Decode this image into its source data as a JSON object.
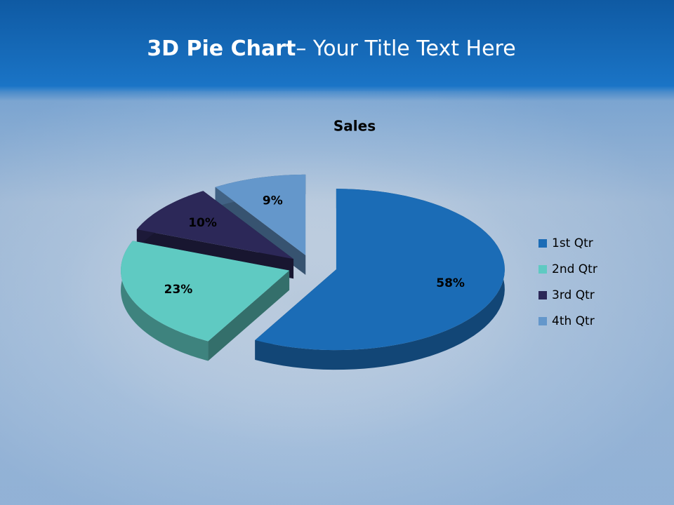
{
  "slide": {
    "title_bold": "3D Pie Chart",
    "title_rest": "– Your Title Text Here"
  },
  "chart_data": {
    "type": "pie",
    "title": "Sales",
    "categories": [
      "1st Qtr",
      "2nd Qtr",
      "3rd Qtr",
      "4th Qtr"
    ],
    "values": [
      58,
      23,
      10,
      9
    ],
    "value_labels": [
      "58%",
      "23%",
      "10%",
      "9%"
    ],
    "colors": [
      "#1b6cb6",
      "#5fcac2",
      "#2c2858",
      "#6497cb"
    ],
    "legend": "right"
  }
}
